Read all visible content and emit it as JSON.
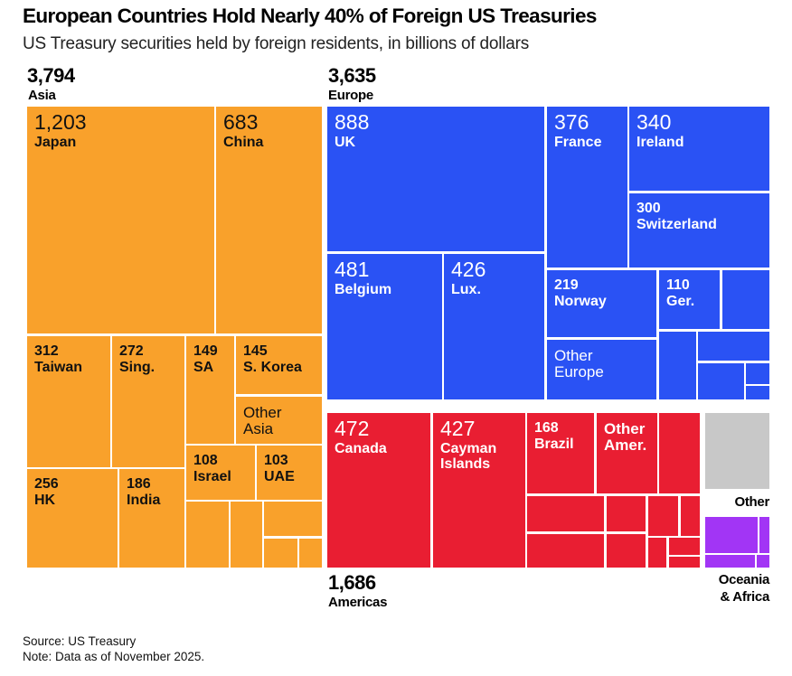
{
  "header": {
    "title": "European Countries Hold Nearly 40% of Foreign US Treasuries",
    "subtitle": "US Treasury securities held by foreign residents, in billions of dollars"
  },
  "regions": {
    "asia": {
      "total": "3,794",
      "name": "Asia"
    },
    "europe": {
      "total": "3,635",
      "name": "Europe"
    },
    "americas": {
      "total": "1,686",
      "name": "Americas"
    },
    "other": {
      "name": "Other"
    },
    "oceania": {
      "name": "Oceania\n& Africa",
      "line1": "Oceania",
      "line2": "& Africa"
    }
  },
  "footer": {
    "source": "Source: US Treasury",
    "note": "Note: Data as of November 2025."
  },
  "chart_data": {
    "type": "treemap",
    "title": "European Countries Hold Nearly 40% of Foreign US Treasuries",
    "subtitle": "US Treasury securities held by foreign residents, in billions of dollars",
    "units": "billions of US dollars",
    "colors": {
      "Asia": "#F9A12B",
      "Europe": "#2A52F4",
      "Americas": "#E91E32",
      "Other": "#C8C8C8",
      "Oceania & Africa": "#A235F5"
    },
    "groups": [
      {
        "name": "Asia",
        "total": 3794,
        "items": [
          {
            "label": "Japan",
            "value": 1203
          },
          {
            "label": "China",
            "value": 683
          },
          {
            "label": "Taiwan",
            "value": 312
          },
          {
            "label": "Sing.",
            "value": 272
          },
          {
            "label": "HK",
            "value": 256
          },
          {
            "label": "India",
            "value": 186
          },
          {
            "label": "SA",
            "value": 149
          },
          {
            "label": "S. Korea",
            "value": 145
          },
          {
            "label": "Other Asia",
            "value": null
          },
          {
            "label": "Israel",
            "value": 108
          },
          {
            "label": "UAE",
            "value": 103
          },
          {
            "label": "",
            "value": null
          },
          {
            "label": "",
            "value": null
          },
          {
            "label": "",
            "value": null
          },
          {
            "label": "",
            "value": null
          },
          {
            "label": "",
            "value": null
          }
        ]
      },
      {
        "name": "Europe",
        "total": 3635,
        "items": [
          {
            "label": "UK",
            "value": 888
          },
          {
            "label": "Belgium",
            "value": 481
          },
          {
            "label": "Lux.",
            "value": 426
          },
          {
            "label": "France",
            "value": 376
          },
          {
            "label": "Ireland",
            "value": 340
          },
          {
            "label": "Switzerland",
            "value": 300
          },
          {
            "label": "Norway",
            "value": 219
          },
          {
            "label": "Other Europe",
            "value": null
          },
          {
            "label": "Ger.",
            "value": 110
          },
          {
            "label": "",
            "value": null
          },
          {
            "label": "",
            "value": null
          },
          {
            "label": "",
            "value": null
          },
          {
            "label": "",
            "value": null
          },
          {
            "label": "",
            "value": null
          },
          {
            "label": "",
            "value": null
          }
        ]
      },
      {
        "name": "Americas",
        "total": 1686,
        "items": [
          {
            "label": "Canada",
            "value": 472
          },
          {
            "label": "Cayman Islands",
            "value": 427
          },
          {
            "label": "Brazil",
            "value": 168
          },
          {
            "label": "Other Amer.",
            "value": null
          },
          {
            "label": "",
            "value": null
          },
          {
            "label": "",
            "value": null
          },
          {
            "label": "",
            "value": null
          },
          {
            "label": "",
            "value": null
          },
          {
            "label": "",
            "value": null
          },
          {
            "label": "",
            "value": null
          },
          {
            "label": "",
            "value": null
          },
          {
            "label": "",
            "value": null
          },
          {
            "label": "",
            "value": null
          },
          {
            "label": "",
            "value": null
          }
        ]
      },
      {
        "name": "Other",
        "total": null,
        "items": [
          {
            "label": "",
            "value": null
          }
        ]
      },
      {
        "name": "Oceania & Africa",
        "total": null,
        "items": [
          {
            "label": "",
            "value": null
          },
          {
            "label": "",
            "value": null
          },
          {
            "label": "",
            "value": null
          },
          {
            "label": "",
            "value": null
          }
        ]
      }
    ]
  }
}
